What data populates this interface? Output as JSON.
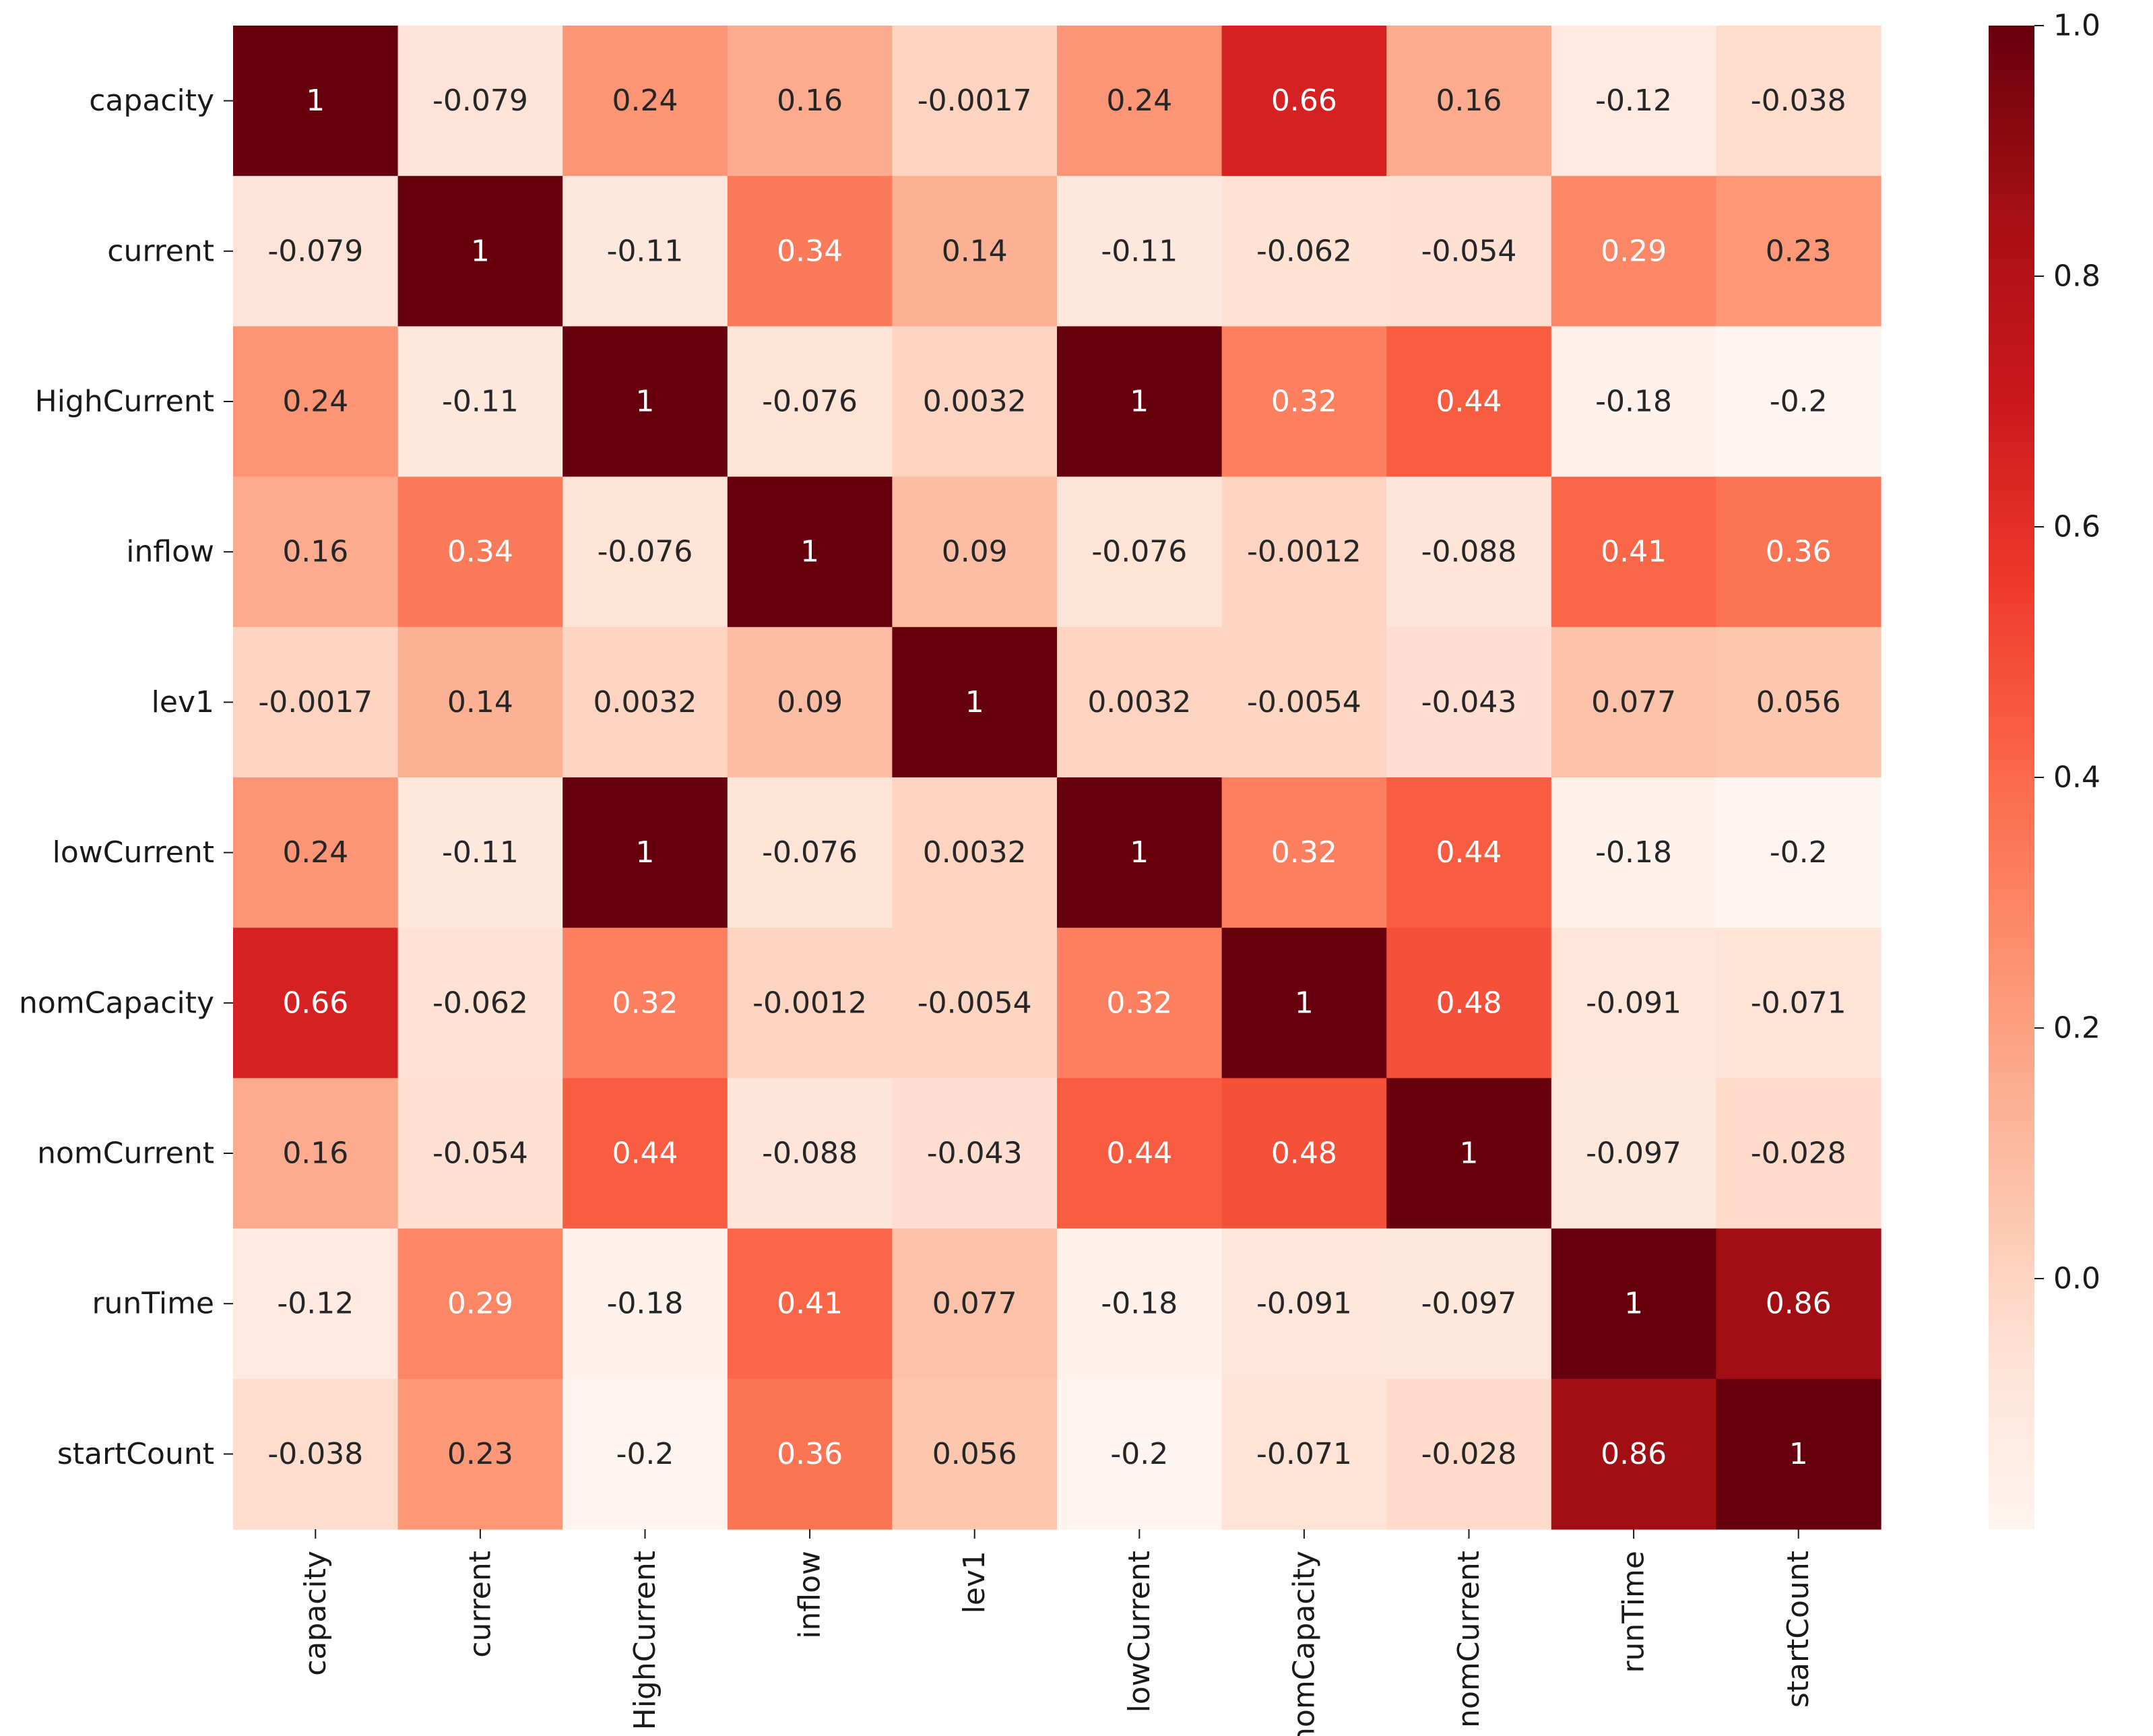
{
  "chart_data": {
    "type": "heatmap",
    "title": "",
    "xlabel": "",
    "ylabel": "",
    "colormap": "Reds",
    "colors": {
      "low": "#fff5f0",
      "high": "#67000d"
    },
    "x_labels": [
      "capacity",
      "current",
      "HighCurrent",
      "inflow",
      "lev1",
      "lowCurrent",
      "nomCapacity",
      "nomCurrent",
      "runTime",
      "startCount"
    ],
    "y_labels": [
      "capacity",
      "current",
      "HighCurrent",
      "inflow",
      "lev1",
      "lowCurrent",
      "nomCapacity",
      "nomCurrent",
      "runTime",
      "startCount"
    ],
    "values": [
      [
        1,
        -0.079,
        0.24,
        0.16,
        -0.0017,
        0.24,
        0.66,
        0.16,
        -0.12,
        -0.038
      ],
      [
        -0.079,
        1,
        -0.11,
        0.34,
        0.14,
        -0.11,
        -0.062,
        -0.054,
        0.29,
        0.23
      ],
      [
        0.24,
        -0.11,
        1,
        -0.076,
        0.0032,
        1,
        0.32,
        0.44,
        -0.18,
        -0.2
      ],
      [
        0.16,
        0.34,
        -0.076,
        1,
        0.09,
        -0.076,
        -0.0012,
        -0.088,
        0.41,
        0.36
      ],
      [
        -0.0017,
        0.14,
        0.0032,
        0.09,
        1,
        0.0032,
        -0.0054,
        -0.043,
        0.077,
        0.056
      ],
      [
        0.24,
        -0.11,
        1,
        -0.076,
        0.0032,
        1,
        0.32,
        0.44,
        -0.18,
        -0.2
      ],
      [
        0.66,
        -0.062,
        0.32,
        -0.0012,
        -0.0054,
        0.32,
        1,
        0.48,
        -0.091,
        -0.071
      ],
      [
        0.16,
        -0.054,
        0.44,
        -0.088,
        -0.043,
        0.44,
        0.48,
        1,
        -0.097,
        -0.028
      ],
      [
        -0.12,
        0.29,
        -0.18,
        0.41,
        0.077,
        -0.18,
        -0.091,
        -0.097,
        1,
        0.86
      ],
      [
        -0.038,
        0.23,
        -0.2,
        0.36,
        0.056,
        -0.2,
        -0.071,
        -0.028,
        0.86,
        1
      ]
    ],
    "display_values": [
      [
        "1",
        "-0.079",
        "0.24",
        "0.16",
        "-0.0017",
        "0.24",
        "0.66",
        "0.16",
        "-0.12",
        "-0.038"
      ],
      [
        "-0.079",
        "1",
        "-0.11",
        "0.34",
        "0.14",
        "-0.11",
        "-0.062",
        "-0.054",
        "0.29",
        "0.23"
      ],
      [
        "0.24",
        "-0.11",
        "1",
        "-0.076",
        "0.0032",
        "1",
        "0.32",
        "0.44",
        "-0.18",
        "-0.2"
      ],
      [
        "0.16",
        "0.34",
        "-0.076",
        "1",
        "0.09",
        "-0.076",
        "-0.0012",
        "-0.088",
        "0.41",
        "0.36"
      ],
      [
        "-0.0017",
        "0.14",
        "0.0032",
        "0.09",
        "1",
        "0.0032",
        "-0.0054",
        "-0.043",
        "0.077",
        "0.056"
      ],
      [
        "0.24",
        "-0.11",
        "1",
        "-0.076",
        "0.0032",
        "1",
        "0.32",
        "0.44",
        "-0.18",
        "-0.2"
      ],
      [
        "0.66",
        "-0.062",
        "0.32",
        "-0.0012",
        "-0.0054",
        "0.32",
        "1",
        "0.48",
        "-0.091",
        "-0.071"
      ],
      [
        "0.16",
        "-0.054",
        "0.44",
        "-0.088",
        "-0.043",
        "0.44",
        "0.48",
        "1",
        "-0.097",
        "-0.028"
      ],
      [
        "-0.12",
        "0.29",
        "-0.18",
        "0.41",
        "0.077",
        "-0.18",
        "-0.091",
        "-0.097",
        "1",
        "0.86"
      ],
      [
        "-0.038",
        "0.23",
        "-0.2",
        "0.36",
        "0.056",
        "-0.2",
        "-0.071",
        "-0.028",
        "0.86",
        "1"
      ]
    ],
    "vmin": -0.2,
    "vmax": 1.0,
    "colorbar": {
      "ticks": [
        0.0,
        0.2,
        0.4,
        0.6,
        0.8,
        1.0
      ],
      "tick_labels": [
        "0.0",
        "0.2",
        "0.4",
        "0.6",
        "0.8",
        "1.0"
      ],
      "placement": "right"
    },
    "grid": false,
    "legend": "colorbar-right"
  }
}
